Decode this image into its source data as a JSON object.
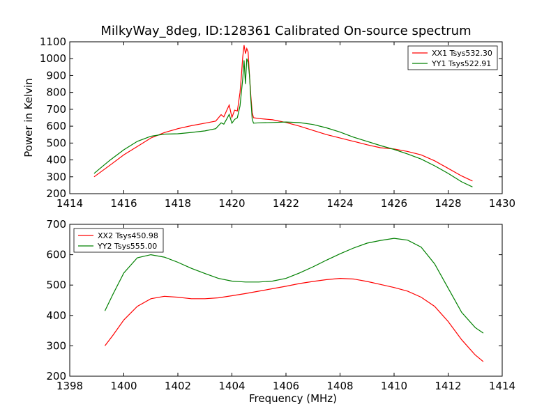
{
  "chart_data": [
    {
      "type": "line",
      "title": "MilkyWay_8deg, ID:128361 Calibrated On-source spectrum",
      "xlabel": "",
      "ylabel": "Power in Kelvin",
      "xlim": [
        1414,
        1430
      ],
      "ylim": [
        200,
        1100
      ],
      "xticks": [
        "1414",
        "1416",
        "1418",
        "1420",
        "1422",
        "1424",
        "1426",
        "1428",
        "1430"
      ],
      "yticks": [
        "200",
        "300",
        "400",
        "500",
        "600",
        "700",
        "800",
        "900",
        "1000",
        "1100"
      ],
      "grid": false,
      "legend_position": "top-right",
      "series": [
        {
          "name": "XX1 Tsys532.30",
          "color": "#ff0000",
          "x": [
            1414.9,
            1415.2,
            1415.5,
            1416.0,
            1416.5,
            1417.0,
            1417.5,
            1418.0,
            1418.5,
            1419.0,
            1419.4,
            1419.6,
            1419.7,
            1419.8,
            1419.9,
            1420.0,
            1420.1,
            1420.2,
            1420.3,
            1420.35,
            1420.4,
            1420.45,
            1420.5,
            1420.55,
            1420.6,
            1420.65,
            1420.7,
            1420.75,
            1420.8,
            1421.0,
            1421.5,
            1422.0,
            1422.5,
            1423.0,
            1423.5,
            1424.0,
            1424.5,
            1425.0,
            1425.5,
            1426.0,
            1426.5,
            1427.0,
            1427.5,
            1428.0,
            1428.5,
            1428.9
          ],
          "y": [
            300,
            335,
            370,
            430,
            480,
            530,
            562,
            585,
            603,
            618,
            630,
            668,
            655,
            690,
            725,
            652,
            695,
            690,
            800,
            900,
            1010,
            1080,
            1030,
            1060,
            1040,
            900,
            780,
            680,
            650,
            645,
            638,
            622,
            600,
            575,
            550,
            530,
            510,
            490,
            472,
            465,
            450,
            430,
            395,
            350,
            305,
            275
          ]
        },
        {
          "name": "YY1 Tsys522.91",
          "color": "#008000",
          "x": [
            1414.9,
            1415.2,
            1415.5,
            1416.0,
            1416.5,
            1417.0,
            1417.5,
            1418.0,
            1418.5,
            1419.0,
            1419.4,
            1419.6,
            1419.7,
            1419.8,
            1419.9,
            1420.0,
            1420.1,
            1420.2,
            1420.3,
            1420.4,
            1420.45,
            1420.5,
            1420.55,
            1420.6,
            1420.65,
            1420.7,
            1420.75,
            1420.8,
            1421.0,
            1421.5,
            1422.0,
            1422.5,
            1423.0,
            1423.5,
            1424.0,
            1424.5,
            1425.0,
            1425.5,
            1426.0,
            1426.5,
            1427.0,
            1427.5,
            1428.0,
            1428.5,
            1428.9
          ],
          "y": [
            320,
            360,
            400,
            460,
            510,
            540,
            553,
            555,
            563,
            572,
            585,
            620,
            612,
            640,
            670,
            618,
            640,
            650,
            720,
            880,
            990,
            850,
            1000,
            980,
            900,
            760,
            640,
            618,
            620,
            622,
            625,
            621,
            610,
            590,
            565,
            535,
            510,
            485,
            462,
            435,
            405,
            365,
            320,
            270,
            240
          ]
        }
      ]
    },
    {
      "type": "line",
      "title": "",
      "xlabel": "Frequency (MHz)",
      "ylabel": "",
      "xlim": [
        1398,
        1414
      ],
      "ylim": [
        200,
        700
      ],
      "xticks": [
        "1398",
        "1400",
        "1402",
        "1404",
        "1406",
        "1408",
        "1410",
        "1412",
        "1414"
      ],
      "yticks": [
        "200",
        "300",
        "400",
        "500",
        "600",
        "700"
      ],
      "grid": false,
      "legend_position": "top-left",
      "series": [
        {
          "name": "XX2 Tsys450.98",
          "color": "#ff0000",
          "x": [
            1399.3,
            1399.6,
            1400.0,
            1400.5,
            1401.0,
            1401.5,
            1402.0,
            1402.5,
            1403.0,
            1403.5,
            1404.0,
            1404.5,
            1405.0,
            1405.5,
            1406.0,
            1406.5,
            1407.0,
            1407.5,
            1408.0,
            1408.5,
            1409.0,
            1409.5,
            1410.0,
            1410.5,
            1411.0,
            1411.5,
            1412.0,
            1412.5,
            1413.0,
            1413.3
          ],
          "y": [
            300,
            335,
            385,
            430,
            455,
            463,
            460,
            455,
            455,
            458,
            465,
            472,
            480,
            488,
            496,
            505,
            512,
            518,
            522,
            520,
            512,
            502,
            492,
            480,
            460,
            430,
            380,
            320,
            270,
            248
          ]
        },
        {
          "name": "YY2 Tsys555.00",
          "color": "#008000",
          "x": [
            1399.3,
            1399.6,
            1400.0,
            1400.5,
            1401.0,
            1401.5,
            1402.0,
            1402.5,
            1403.0,
            1403.5,
            1404.0,
            1404.5,
            1405.0,
            1405.5,
            1406.0,
            1406.5,
            1407.0,
            1407.5,
            1408.0,
            1408.5,
            1409.0,
            1409.5,
            1410.0,
            1410.5,
            1411.0,
            1411.5,
            1412.0,
            1412.5,
            1413.0,
            1413.3
          ],
          "y": [
            415,
            470,
            540,
            590,
            600,
            592,
            575,
            555,
            538,
            522,
            513,
            510,
            510,
            513,
            522,
            540,
            560,
            582,
            603,
            622,
            638,
            647,
            654,
            648,
            625,
            570,
            490,
            410,
            360,
            342
          ]
        }
      ]
    }
  ]
}
